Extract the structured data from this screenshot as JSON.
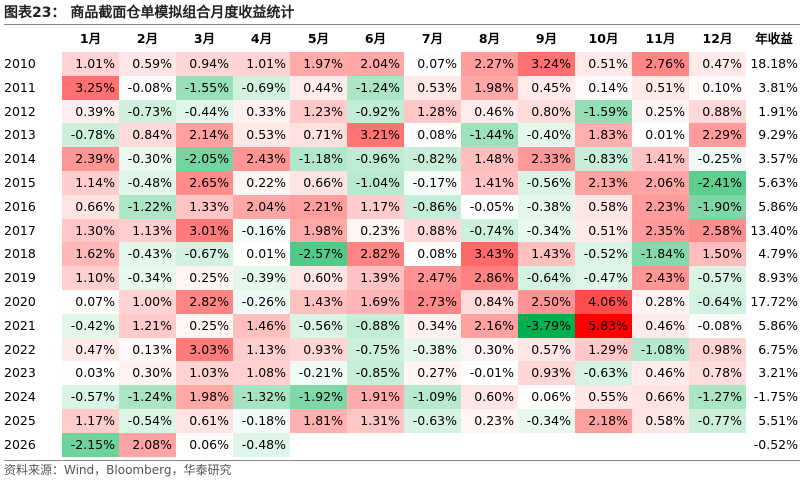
{
  "title": "图表23：  商品截面仓单模拟组合月度收益统计",
  "table": {
    "header": [
      "1月",
      "2月",
      "3月",
      "4月",
      "5月",
      "6月",
      "7月",
      "8月",
      "9月",
      "10月",
      "11月",
      "12月",
      "年收益"
    ],
    "rows": [
      {
        "year": "2010",
        "cells": [
          "1.01%",
          "0.59%",
          "0.94%",
          "1.01%",
          "1.97%",
          "2.04%",
          "0.07%",
          "2.27%",
          "3.24%",
          "0.51%",
          "2.76%",
          "0.47%"
        ],
        "annual": "18.18%"
      },
      {
        "year": "2011",
        "cells": [
          "3.25%",
          "-0.08%",
          "-1.55%",
          "-0.69%",
          "0.44%",
          "-1.24%",
          "0.53%",
          "1.98%",
          "0.45%",
          "0.14%",
          "0.51%",
          "0.10%"
        ],
        "annual": "3.81%"
      },
      {
        "year": "2012",
        "cells": [
          "0.39%",
          "-0.73%",
          "-0.44%",
          "0.33%",
          "1.23%",
          "-0.92%",
          "1.28%",
          "0.46%",
          "0.80%",
          "-1.59%",
          "0.25%",
          "0.88%"
        ],
        "annual": "1.91%"
      },
      {
        "year": "2013",
        "cells": [
          "-0.78%",
          "0.84%",
          "2.14%",
          "0.53%",
          "0.71%",
          "3.21%",
          "0.08%",
          "-1.44%",
          "-0.40%",
          "1.83%",
          "0.01%",
          "2.29%"
        ],
        "annual": "9.29%"
      },
      {
        "year": "2014",
        "cells": [
          "2.39%",
          "-0.30%",
          "-2.05%",
          "2.43%",
          "-1.18%",
          "-0.96%",
          "-0.82%",
          "1.48%",
          "2.33%",
          "-0.83%",
          "1.41%",
          "-0.25%"
        ],
        "annual": "3.57%"
      },
      {
        "year": "2015",
        "cells": [
          "1.14%",
          "-0.48%",
          "2.65%",
          "0.22%",
          "0.66%",
          "-1.04%",
          "-0.17%",
          "1.41%",
          "-0.56%",
          "2.13%",
          "2.06%",
          "-2.41%"
        ],
        "annual": "5.63%"
      },
      {
        "year": "2016",
        "cells": [
          "0.66%",
          "-1.22%",
          "1.33%",
          "2.04%",
          "2.21%",
          "1.17%",
          "-0.86%",
          "-0.05%",
          "-0.38%",
          "0.58%",
          "2.23%",
          "-1.90%"
        ],
        "annual": "5.86%"
      },
      {
        "year": "2017",
        "cells": [
          "1.30%",
          "1.13%",
          "3.01%",
          "-0.16%",
          "1.98%",
          "0.23%",
          "0.88%",
          "-0.74%",
          "-0.34%",
          "0.51%",
          "2.35%",
          "2.58%"
        ],
        "annual": "13.40%"
      },
      {
        "year": "2018",
        "cells": [
          "1.62%",
          "-0.43%",
          "-0.67%",
          "0.01%",
          "-2.57%",
          "2.82%",
          "0.08%",
          "3.43%",
          "1.43%",
          "-0.52%",
          "-1.84%",
          "1.50%"
        ],
        "annual": "4.79%"
      },
      {
        "year": "2019",
        "cells": [
          "1.10%",
          "-0.34%",
          "0.25%",
          "-0.39%",
          "0.60%",
          "1.39%",
          "2.47%",
          "2.86%",
          "-0.64%",
          "-0.47%",
          "2.43%",
          "-0.57%"
        ],
        "annual": "8.93%"
      },
      {
        "year": "2020",
        "cells": [
          "0.07%",
          "1.00%",
          "2.82%",
          "-0.26%",
          "1.43%",
          "1.69%",
          "2.73%",
          "0.84%",
          "2.50%",
          "4.06%",
          "0.28%",
          "-0.64%"
        ],
        "annual": "17.72%"
      },
      {
        "year": "2021",
        "cells": [
          "-0.42%",
          "1.21%",
          "0.25%",
          "1.46%",
          "-0.56%",
          "-0.88%",
          "0.34%",
          "2.16%",
          "-3.79%",
          "5.83%",
          "0.46%",
          "-0.08%"
        ],
        "annual": "5.86%"
      },
      {
        "year": "2022",
        "cells": [
          "0.47%",
          "0.13%",
          "3.03%",
          "1.13%",
          "0.93%",
          "-0.75%",
          "-0.38%",
          "0.30%",
          "0.57%",
          "1.29%",
          "-1.08%",
          "0.98%"
        ],
        "annual": "6.75%"
      },
      {
        "year": "2023",
        "cells": [
          "0.03%",
          "0.30%",
          "1.03%",
          "1.08%",
          "-0.21%",
          "-0.85%",
          "0.27%",
          "-0.01%",
          "0.93%",
          "-0.63%",
          "0.46%",
          "0.78%"
        ],
        "annual": "3.21%"
      },
      {
        "year": "2024",
        "cells": [
          "-0.57%",
          "-1.24%",
          "1.98%",
          "-1.32%",
          "-1.92%",
          "1.91%",
          "-1.09%",
          "0.60%",
          "0.06%",
          "0.55%",
          "0.66%",
          "-1.27%"
        ],
        "annual": "-1.75%"
      },
      {
        "year": "2025",
        "cells": [
          "1.17%",
          "-0.54%",
          "0.61%",
          "-0.18%",
          "1.81%",
          "1.31%",
          "-0.63%",
          "0.23%",
          "-0.34%",
          "2.18%",
          "0.58%",
          "-0.77%"
        ],
        "annual": "5.51%"
      },
      {
        "year": "2026",
        "cells": [
          "-2.15%",
          "2.08%",
          "0.06%",
          "-0.48%",
          null,
          null,
          null,
          null,
          null,
          null,
          null,
          null
        ],
        "annual": "-0.52%"
      }
    ]
  },
  "source": "资料来源：Wind，Bloomberg，华泰研究"
}
